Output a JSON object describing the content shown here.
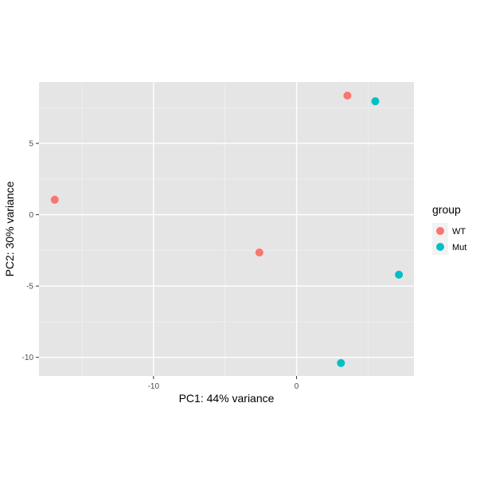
{
  "chart_data": {
    "type": "scatter",
    "title": "",
    "xlabel": "PC1: 44% variance",
    "ylabel": "PC2: 30% variance",
    "xlim": [
      -18.0,
      8.2
    ],
    "ylim": [
      -11.3,
      9.3
    ],
    "x_ticks": [
      -10,
      0
    ],
    "y_ticks": [
      -10,
      -5,
      0,
      5
    ],
    "x_minor_ticks": [
      -15,
      -5,
      5
    ],
    "y_minor_ticks": [
      -7.5,
      -2.5,
      2.5,
      7.5
    ],
    "grid": true,
    "legend": {
      "title": "group",
      "position": "right"
    },
    "series": [
      {
        "name": "WT",
        "color": "#F8766D",
        "points": [
          {
            "x": -16.9,
            "y": 1.05
          },
          {
            "x": -2.6,
            "y": -2.65
          },
          {
            "x": 3.55,
            "y": 8.35
          }
        ]
      },
      {
        "name": "Mut",
        "color": "#00BFC4",
        "points": [
          {
            "x": 5.5,
            "y": 7.95
          },
          {
            "x": 7.15,
            "y": -4.2
          },
          {
            "x": 3.1,
            "y": -10.4
          }
        ]
      }
    ],
    "colors": {
      "panel_background": "#E5E5E5",
      "grid_major": "#FFFFFF",
      "grid_minor": "#F2F2F2",
      "axis_text": "#4D4D4D",
      "axis_title": "#000000",
      "legend_key_background": "#F2F2F2"
    }
  }
}
